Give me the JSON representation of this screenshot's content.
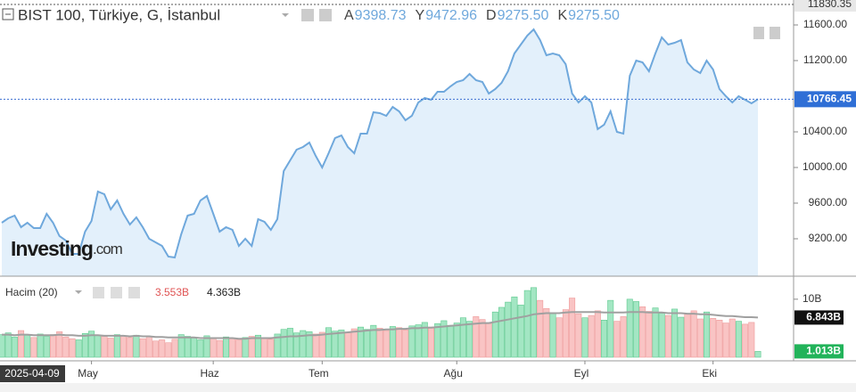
{
  "chart_data": {
    "type": "area",
    "title": "BIST 100, Türkiye, G, İstanbul",
    "ohlc": [
      {
        "key": "A",
        "text": "9398.73"
      },
      {
        "key": "Y",
        "text": "9472.96"
      },
      {
        "key": "D",
        "text": "9275.50"
      },
      {
        "key": "K",
        "text": "9275.50"
      }
    ],
    "cursor_date": "2025-04-09",
    "watermark": "Investing",
    "watermark_suffix": ".com",
    "categories": [
      null,
      null,
      null,
      null,
      null,
      null,
      null,
      null,
      null,
      null,
      null,
      null,
      null,
      null,
      "May",
      null,
      null,
      null,
      null,
      null,
      null,
      null,
      null,
      null,
      null,
      null,
      null,
      null,
      null,
      null,
      null,
      null,
      null,
      "Haz",
      null,
      null,
      null,
      null,
      null,
      null,
      null,
      null,
      null,
      null,
      null,
      null,
      null,
      null,
      null,
      null,
      "Tem",
      null,
      null,
      null,
      null,
      null,
      null,
      null,
      null,
      null,
      null,
      null,
      null,
      null,
      null,
      null,
      null,
      null,
      null,
      null,
      null,
      "Ağu",
      null,
      null,
      null,
      null,
      null,
      null,
      null,
      null,
      null,
      null,
      null,
      null,
      null,
      null,
      null,
      null,
      null,
      null,
      null,
      "Eyl",
      null,
      null,
      null,
      null,
      null,
      null,
      null,
      null,
      null,
      null,
      null,
      null,
      null,
      null,
      null,
      null,
      null,
      null,
      null,
      "Eki",
      null,
      null,
      null,
      null,
      null,
      null,
      null
    ],
    "series": [
      {
        "color": "#6fa8dc",
        "fill": "#e3f0fb",
        "values": [
          9380,
          9430,
          9460,
          9330,
          9380,
          9320,
          9320,
          9480,
          9380,
          9230,
          9180,
          9030,
          9030,
          9280,
          9400,
          9730,
          9700,
          9530,
          9630,
          9480,
          9360,
          9440,
          9330,
          9200,
          9160,
          9120,
          9000,
          8990,
          9250,
          9460,
          9480,
          9630,
          9680,
          9480,
          9280,
          9330,
          9300,
          9120,
          9200,
          9120,
          9420,
          9390,
          9300,
          9420,
          9960,
          10080,
          10200,
          10230,
          10280,
          10130,
          10000,
          10160,
          10330,
          10360,
          10230,
          10160,
          10380,
          10380,
          10620,
          10610,
          10580,
          10680,
          10630,
          10530,
          10580,
          10730,
          10780,
          10760,
          10850,
          10850,
          10910,
          10960,
          10980,
          11050,
          10980,
          10960,
          10830,
          10880,
          10950,
          11080,
          11280,
          11380,
          11480,
          11550,
          11430,
          11260,
          11280,
          11260,
          11160,
          10830,
          10730,
          10800,
          10730,
          10430,
          10480,
          10630,
          10400,
          10380,
          11030,
          11200,
          11180,
          11080,
          11280,
          11460,
          11380,
          11400,
          11430,
          11180,
          11100,
          11060,
          11200,
          11100,
          10880,
          10800,
          10730,
          10800,
          10760,
          10720,
          10766.45
        ]
      }
    ],
    "ylim": [
      8780,
      11880
    ],
    "yticks": [
      {
        "value": 9200,
        "label": "9200.00"
      },
      {
        "value": 9600,
        "label": "9600.00"
      },
      {
        "value": 10000,
        "label": "10000.00"
      },
      {
        "value": 10400,
        "label": "10400.00"
      },
      {
        "value": 11200,
        "label": "11200.00"
      },
      {
        "value": 11600,
        "label": "11600.00"
      }
    ],
    "high_marker": 11830.35,
    "volume": {
      "name": "Hacim (20)",
      "legend_values": [
        "3.553B",
        "4.363B"
      ],
      "up_color": "#a3e6c3",
      "up_border": "#5fc98f",
      "down_color": "#f9c4c4",
      "down_border": "#ee9a9a",
      "values": [
        3.9,
        4.2,
        3.5,
        4.6,
        3.8,
        3.4,
        4.0,
        3.6,
        3.9,
        4.4,
        3.5,
        3.2,
        3.0,
        4.1,
        4.5,
        3.8,
        3.6,
        3.3,
        3.9,
        3.7,
        3.4,
        3.8,
        3.2,
        3.6,
        2.8,
        3.0,
        2.5,
        3.1,
        3.9,
        3.6,
        3.4,
        3.0,
        3.7,
        3.3,
        2.9,
        3.5,
        3.2,
        3.0,
        3.4,
        3.6,
        3.8,
        3.4,
        3.1,
        4.0,
        4.8,
        5.0,
        4.2,
        4.6,
        4.4,
        4.0,
        4.3,
        5.1,
        4.5,
        4.7,
        4.2,
        4.9,
        5.2,
        4.8,
        5.5,
        5.0,
        4.6,
        5.3,
        5.1,
        4.7,
        5.4,
        5.6,
        6.0,
        5.2,
        5.8,
        6.3,
        5.5,
        5.9,
        6.8,
        6.2,
        7.0,
        6.5,
        5.8,
        7.8,
        8.6,
        9.5,
        10.4,
        9.0,
        11.5,
        12.0,
        9.8,
        8.4,
        7.6,
        6.8,
        8.2,
        10.2,
        7.5,
        6.8,
        7.2,
        8.0,
        6.4,
        9.8,
        6.2,
        7.0,
        10.0,
        9.6,
        8.7,
        7.9,
        8.5,
        7.6,
        7.2,
        8.3,
        6.9,
        7.4,
        8.0,
        6.6,
        7.8,
        6.7,
        6.4,
        5.9,
        6.6,
        6.2,
        5.7,
        6.0,
        1.013
      ],
      "last_label": "1.013B",
      "ylim": [
        0,
        13.2
      ],
      "yticks": [
        {
          "value": 10,
          "label": "10B"
        }
      ],
      "ma": {
        "color": "#a0a0a0",
        "last_label": "6.843B",
        "values": [
          3.9,
          3.9,
          3.8,
          3.9,
          3.9,
          3.8,
          3.8,
          3.8,
          3.8,
          3.9,
          3.8,
          3.8,
          3.7,
          3.7,
          3.8,
          3.8,
          3.7,
          3.7,
          3.7,
          3.7,
          3.6,
          3.7,
          3.6,
          3.6,
          3.5,
          3.5,
          3.4,
          3.4,
          3.4,
          3.4,
          3.4,
          3.3,
          3.3,
          3.3,
          3.3,
          3.3,
          3.3,
          3.2,
          3.2,
          3.3,
          3.3,
          3.3,
          3.3,
          3.4,
          3.5,
          3.6,
          3.6,
          3.7,
          3.8,
          3.8,
          3.9,
          4.0,
          4.1,
          4.2,
          4.3,
          4.4,
          4.5,
          4.6,
          4.7,
          4.7,
          4.8,
          4.8,
          4.9,
          4.9,
          5.0,
          5.0,
          5.1,
          5.1,
          5.2,
          5.3,
          5.4,
          5.5,
          5.6,
          5.7,
          5.8,
          5.9,
          5.9,
          6.1,
          6.3,
          6.5,
          6.7,
          6.9,
          7.1,
          7.4,
          7.5,
          7.6,
          7.6,
          7.6,
          7.7,
          7.8,
          7.8,
          7.8,
          7.8,
          7.8,
          7.7,
          7.7,
          7.7,
          7.7,
          7.8,
          7.8,
          7.8,
          7.7,
          7.7,
          7.7,
          7.6,
          7.6,
          7.6,
          7.5,
          7.5,
          7.4,
          7.4,
          7.3,
          7.2,
          7.1,
          7.1,
          7.0,
          6.9,
          6.9,
          6.843
        ]
      }
    }
  }
}
